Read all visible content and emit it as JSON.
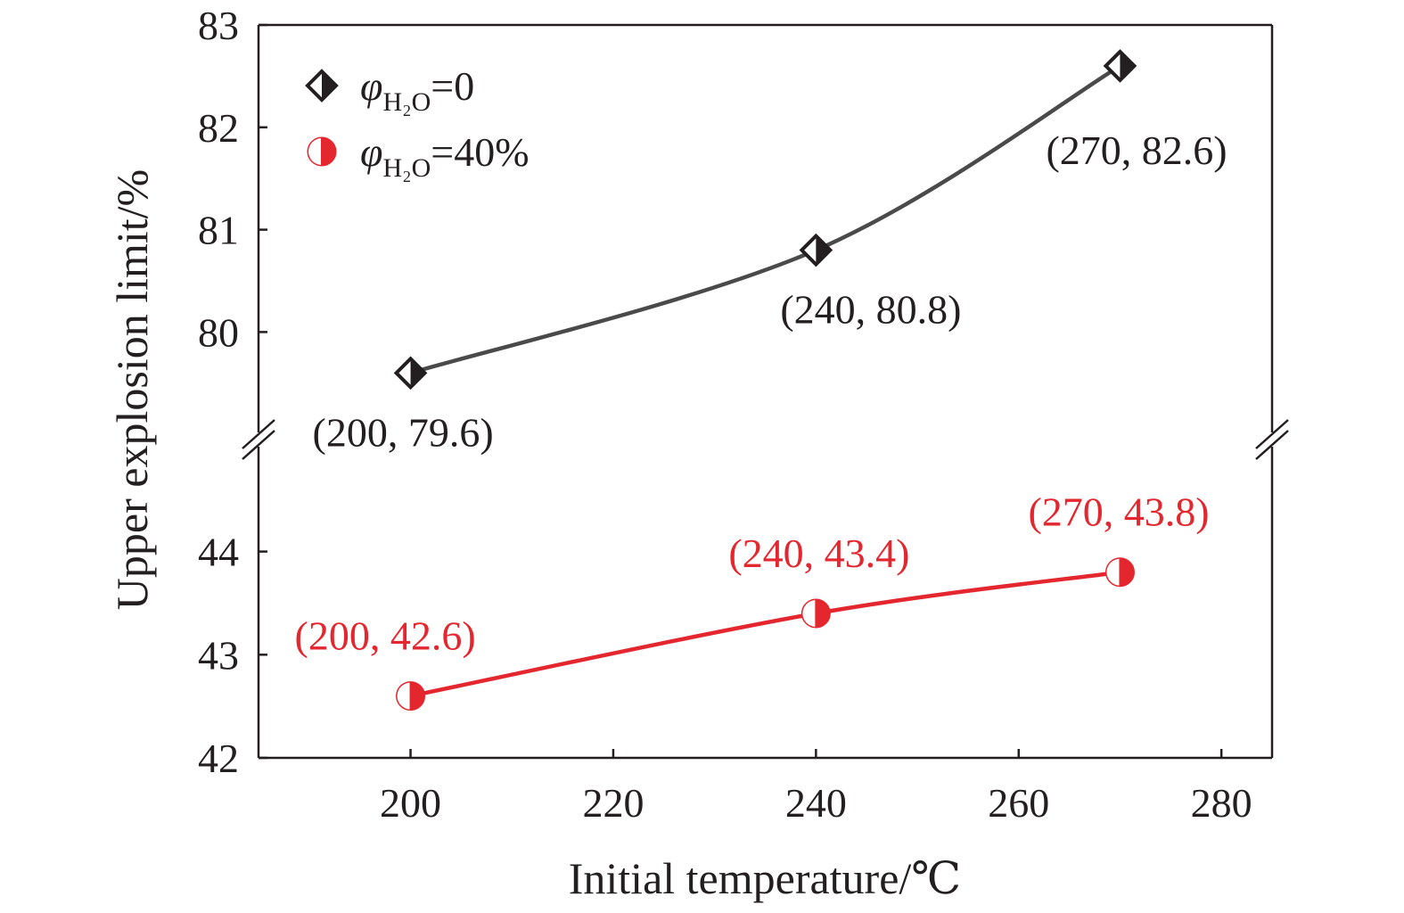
{
  "chart_data": {
    "type": "line",
    "xlabel": "Initial temperature/℃",
    "ylabel": "Upper explosion limit/%",
    "xlim": [
      185,
      285
    ],
    "x_ticks": [
      "200",
      "220",
      "240",
      "260",
      "280"
    ],
    "y_axis_broken": true,
    "ylim_upper_segment": [
      79,
      83
    ],
    "ylim_lower_segment": [
      42,
      45
    ],
    "y_ticks_upper": [
      "80",
      "81",
      "82",
      "83"
    ],
    "y_ticks_lower": [
      "42",
      "43",
      "44"
    ],
    "legend_position": "top-left",
    "legend": [
      {
        "symbol": "φ",
        "subscript": "H₂O",
        "suffix": "=0"
      },
      {
        "symbol": "φ",
        "subscript": "H₂O",
        "suffix": "=40%"
      }
    ],
    "series": [
      {
        "marker": "half-filled-diamond",
        "color": "#231f20",
        "line_color": "#4a4a4a",
        "x": [
          200,
          240,
          270
        ],
        "y": [
          79.6,
          80.8,
          82.6
        ],
        "labels": [
          "(200, 79.6)",
          "(240, 80.8)",
          "(270, 82.6)"
        ]
      },
      {
        "marker": "half-filled-circle",
        "color": "#e4262f",
        "line_color": "#e4262f",
        "x": [
          200,
          240,
          270
        ],
        "y": [
          42.6,
          43.4,
          43.8
        ],
        "labels": [
          "(200, 42.6)",
          "(240, 43.4)",
          "(270, 43.8)"
        ]
      }
    ]
  }
}
